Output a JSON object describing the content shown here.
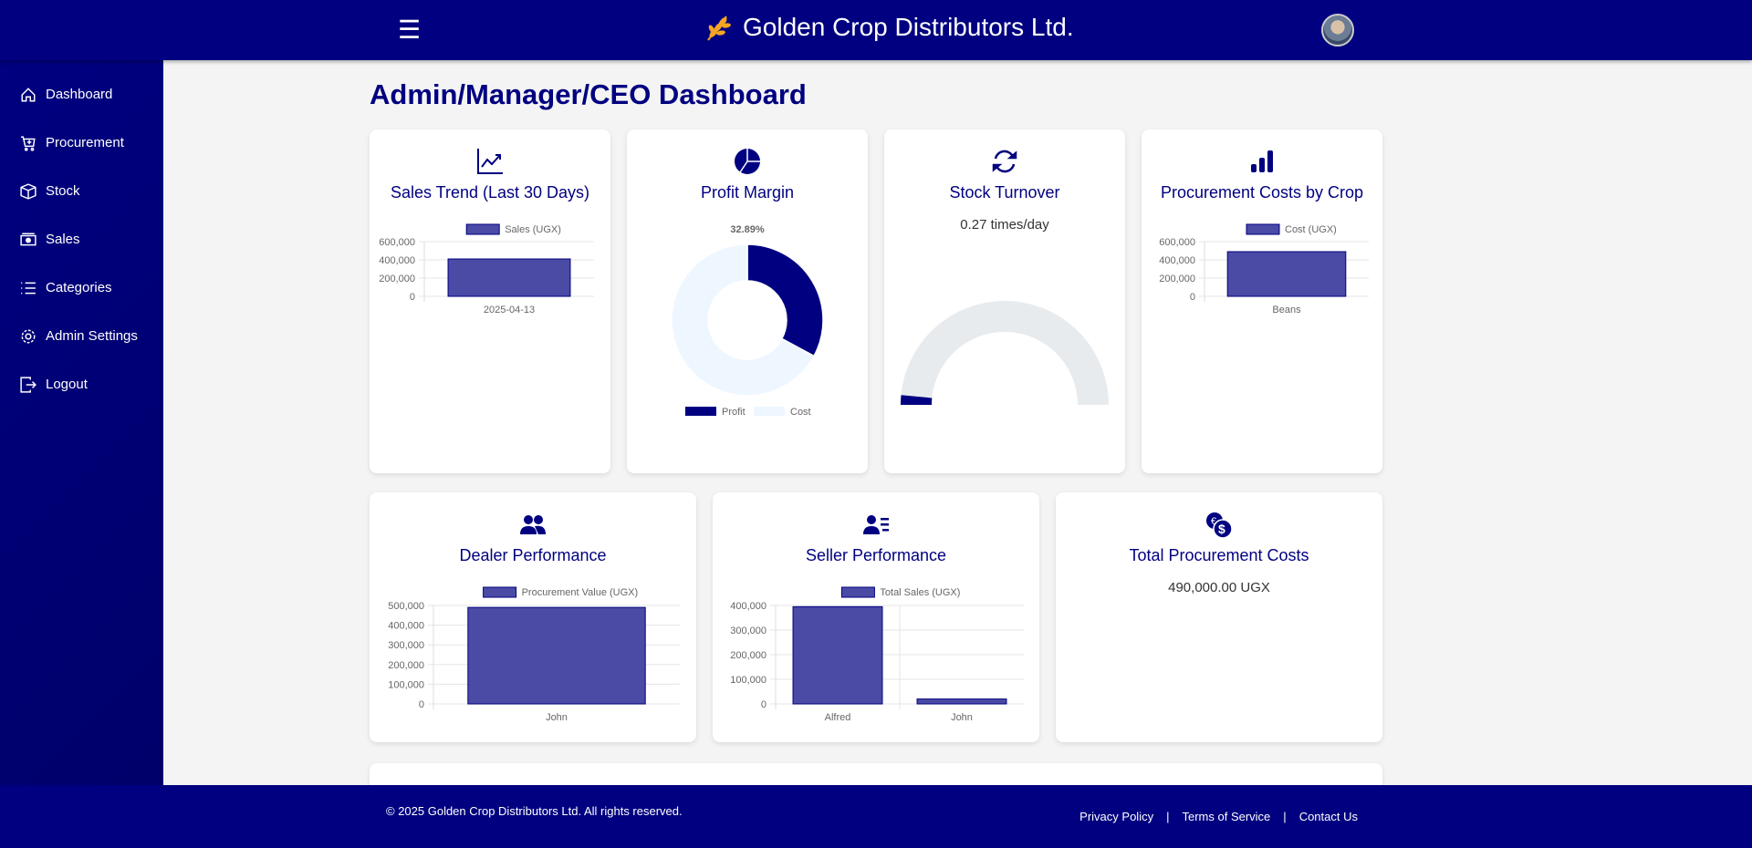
{
  "header": {
    "title": "Golden Crop Distributors Ltd.",
    "menu_icon": "☰"
  },
  "sidebar": {
    "items": [
      {
        "label": "Dashboard",
        "icon": "home-icon"
      },
      {
        "label": "Procurement",
        "icon": "cart-plus-icon"
      },
      {
        "label": "Stock",
        "icon": "box-icon"
      },
      {
        "label": "Sales",
        "icon": "cash-icon"
      },
      {
        "label": "Categories",
        "icon": "list-icon"
      },
      {
        "label": "Admin Settings",
        "icon": "gear-icon"
      },
      {
        "label": "Logout",
        "icon": "logout-icon"
      }
    ]
  },
  "main": {
    "title": "Admin/Manager/CEO Dashboard",
    "cards": {
      "sales_trend": {
        "title": "Sales Trend (Last 30 Days)"
      },
      "profit_margin": {
        "title": "Profit Margin"
      },
      "stock_turnover": {
        "title": "Stock Turnover",
        "value": "0.27 times/day"
      },
      "procurement_by_crop": {
        "title": "Procurement Costs by Crop"
      },
      "dealer_performance": {
        "title": "Dealer Performance"
      },
      "seller_performance": {
        "title": "Seller Performance"
      },
      "total_procurement": {
        "title": "Total Procurement Costs",
        "value": "490,000.00 UGX"
      }
    }
  },
  "colors": {
    "primary": "#000080",
    "bar_fill": "#4b4ba6",
    "donut_cost": "#eef6ff",
    "gauge_track": "#e8ebee",
    "logo": "#f5a623"
  },
  "chart_data": [
    {
      "id": "sales_trend",
      "type": "bar",
      "legend": "Sales (UGX)",
      "categories": [
        "2025-04-13"
      ],
      "values": [
        410000
      ],
      "yticks": [
        "0",
        "200,000",
        "400,000",
        "600,000"
      ],
      "ylim": [
        0,
        600000
      ]
    },
    {
      "id": "profit_margin",
      "type": "pie",
      "label": "32.89%",
      "categories": [
        "Profit",
        "Cost"
      ],
      "values": [
        32.89,
        67.11
      ]
    },
    {
      "id": "stock_turnover",
      "type": "gauge",
      "value": "0.27",
      "gauge_fill_fraction": 0.03
    },
    {
      "id": "procurement_by_crop",
      "type": "bar",
      "legend": "Cost (UGX)",
      "categories": [
        "Beans"
      ],
      "values": [
        490000
      ],
      "yticks": [
        "0",
        "200,000",
        "400,000",
        "600,000"
      ],
      "ylim": [
        0,
        600000
      ]
    },
    {
      "id": "dealer_performance",
      "type": "bar",
      "legend": "Procurement Value (UGX)",
      "categories": [
        "John"
      ],
      "values": [
        490000
      ],
      "yticks": [
        "0",
        "100,000",
        "200,000",
        "300,000",
        "400,000",
        "500,000"
      ],
      "ylim": [
        0,
        500000
      ]
    },
    {
      "id": "seller_performance",
      "type": "bar",
      "legend": "Total Sales (UGX)",
      "categories": [
        "Alfred",
        "John"
      ],
      "values": [
        395000,
        20000
      ],
      "yticks": [
        "0",
        "100,000",
        "200,000",
        "300,000",
        "400,000"
      ],
      "ylim": [
        0,
        400000
      ]
    }
  ],
  "footer": {
    "copyright": "© 2025 Golden Crop Distributors Ltd. All rights reserved.",
    "links": [
      "Privacy Policy",
      "Terms of Service",
      "Contact Us"
    ],
    "separator": "|"
  }
}
